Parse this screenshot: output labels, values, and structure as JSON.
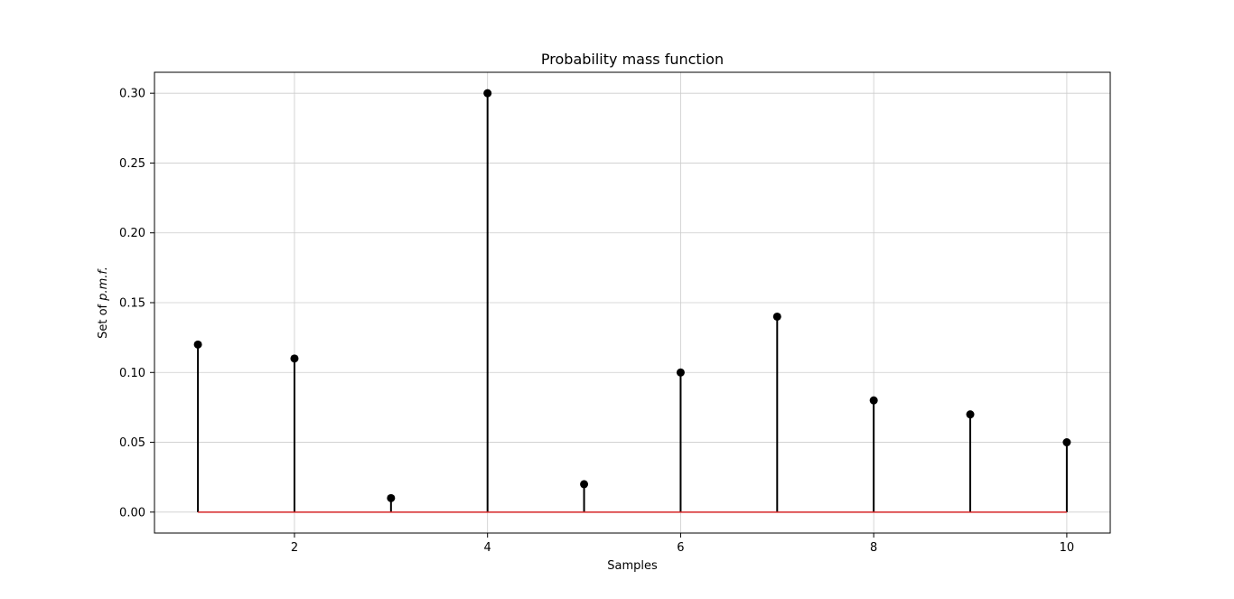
{
  "chart_data": {
    "type": "stem",
    "title": "Probability mass function",
    "xlabel": "Samples",
    "ylabel_prefix": "Set of ",
    "ylabel_math": "p.m.f.",
    "x": [
      1,
      2,
      3,
      4,
      5,
      6,
      7,
      8,
      9,
      10
    ],
    "values": [
      0.12,
      0.11,
      0.01,
      0.3,
      0.02,
      0.1,
      0.14,
      0.08,
      0.07,
      0.05
    ],
    "xlim": [
      0.55,
      10.45
    ],
    "ylim": [
      -0.015,
      0.315
    ],
    "xticks": [
      2,
      4,
      6,
      8,
      10
    ],
    "xtick_labels": [
      "2",
      "4",
      "6",
      "8",
      "10"
    ],
    "yticks": [
      0.0,
      0.05,
      0.1,
      0.15,
      0.2,
      0.25,
      0.3
    ],
    "ytick_labels": [
      "0.00",
      "0.05",
      "0.10",
      "0.15",
      "0.20",
      "0.25",
      "0.30"
    ],
    "grid": true,
    "colors": {
      "stem": "#000000",
      "marker": "#000000",
      "baseline": "#d62728",
      "grid": "#cccccc",
      "frame": "#000000"
    }
  }
}
